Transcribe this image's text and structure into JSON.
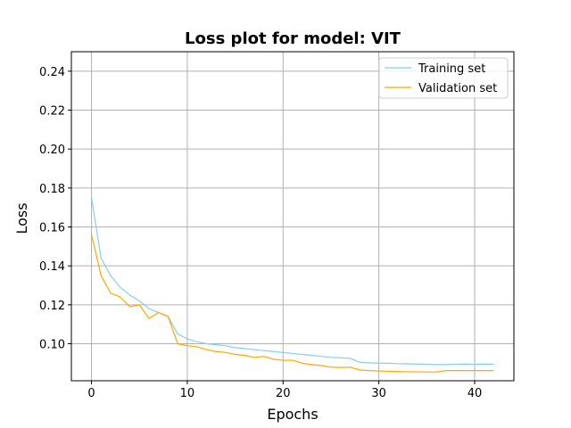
{
  "chart_data": {
    "type": "line",
    "title": "Loss plot for model: VIT",
    "xlabel": "Epochs",
    "ylabel": "Loss",
    "xlim": [
      -2.1,
      44.1
    ],
    "ylim": [
      0.081,
      0.25
    ],
    "xticks": [
      0,
      10,
      20,
      30,
      40
    ],
    "xtick_labels": [
      "0",
      "10",
      "20",
      "30",
      "40"
    ],
    "yticks": [
      0.1,
      0.12,
      0.14,
      0.16,
      0.18,
      0.2,
      0.22,
      0.24
    ],
    "ytick_labels": [
      "0.10",
      "0.12",
      "0.14",
      "0.16",
      "0.18",
      "0.20",
      "0.22",
      "0.24"
    ],
    "grid": true,
    "legend_position": "top-right",
    "x": [
      0,
      1,
      2,
      3,
      4,
      5,
      6,
      7,
      8,
      9,
      10,
      11,
      12,
      13,
      14,
      15,
      16,
      17,
      18,
      19,
      20,
      21,
      22,
      23,
      24,
      25,
      26,
      27,
      28,
      29,
      30,
      31,
      32,
      33,
      34,
      35,
      36,
      37,
      38,
      39,
      40,
      41,
      42
    ],
    "series": [
      {
        "name": "Training set",
        "color": "#87ceeb",
        "values": [
          0.175,
          0.144,
          0.135,
          0.129,
          0.125,
          0.122,
          0.118,
          0.116,
          0.114,
          0.105,
          0.1025,
          0.101,
          0.1,
          0.0995,
          0.099,
          0.098,
          0.0975,
          0.097,
          0.0965,
          0.096,
          0.0955,
          0.095,
          0.0945,
          0.094,
          0.0935,
          0.093,
          0.0928,
          0.0925,
          0.0905,
          0.0902,
          0.09,
          0.09,
          0.0898,
          0.0897,
          0.0896,
          0.0895,
          0.0893,
          0.0893,
          0.0895,
          0.0896,
          0.0895,
          0.0896,
          0.0895
        ]
      },
      {
        "name": "Validation set",
        "color": "#ffa500",
        "values": [
          0.156,
          0.135,
          0.126,
          0.124,
          0.119,
          0.12,
          0.113,
          0.116,
          0.114,
          0.1,
          0.099,
          0.0985,
          0.097,
          0.096,
          0.0955,
          0.0945,
          0.094,
          0.093,
          0.0935,
          0.092,
          0.0915,
          0.0915,
          0.09,
          0.0893,
          0.0888,
          0.088,
          0.0878,
          0.088,
          0.0865,
          0.0862,
          0.086,
          0.0858,
          0.0857,
          0.0856,
          0.0856,
          0.0855,
          0.0855,
          0.0862,
          0.0862,
          0.0862,
          0.0862,
          0.0862,
          0.0862
        ]
      }
    ]
  }
}
